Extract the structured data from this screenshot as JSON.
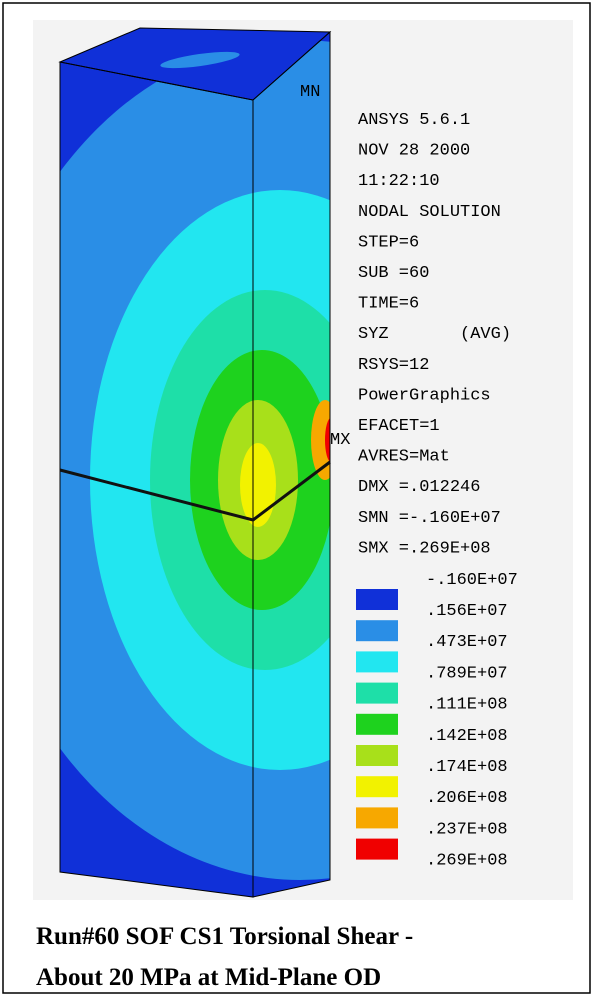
{
  "info_lines": [
    "ANSYS 5.6.1",
    "NOV 28 2000",
    "11:22:10",
    "NODAL SOLUTION",
    "STEP=6",
    "SUB =60",
    "TIME=6",
    "SYZ       (AVG)",
    "RSYS=12",
    "PowerGraphics",
    "EFACET=1",
    "AVRES=Mat",
    "DMX =.012246",
    "SMN =-.160E+07",
    "SMX =.269E+08"
  ],
  "legend": {
    "min_label": "-.160E+07",
    "entries": [
      {
        "color": "#1030d8",
        "label": ".156E+07"
      },
      {
        "color": "#2a8ee6",
        "label": ".473E+07"
      },
      {
        "color": "#22e6f0",
        "label": ".789E+07"
      },
      {
        "color": "#1edfa8",
        "label": ".111E+08"
      },
      {
        "color": "#1ed21e",
        "label": ".142E+08"
      },
      {
        "color": "#a8e01a",
        "label": ".174E+08"
      },
      {
        "color": "#f2f200",
        "label": ".206E+08"
      },
      {
        "color": "#f7a800",
        "label": ".237E+08"
      },
      {
        "color": "#f00000",
        "label": ".269E+08"
      }
    ]
  },
  "markers": [
    "MN",
    "MX"
  ],
  "caption": [
    "Run#60 SOF CS1 Torsional Shear -",
    "About 20 MPa at Mid-Plane OD"
  ]
}
